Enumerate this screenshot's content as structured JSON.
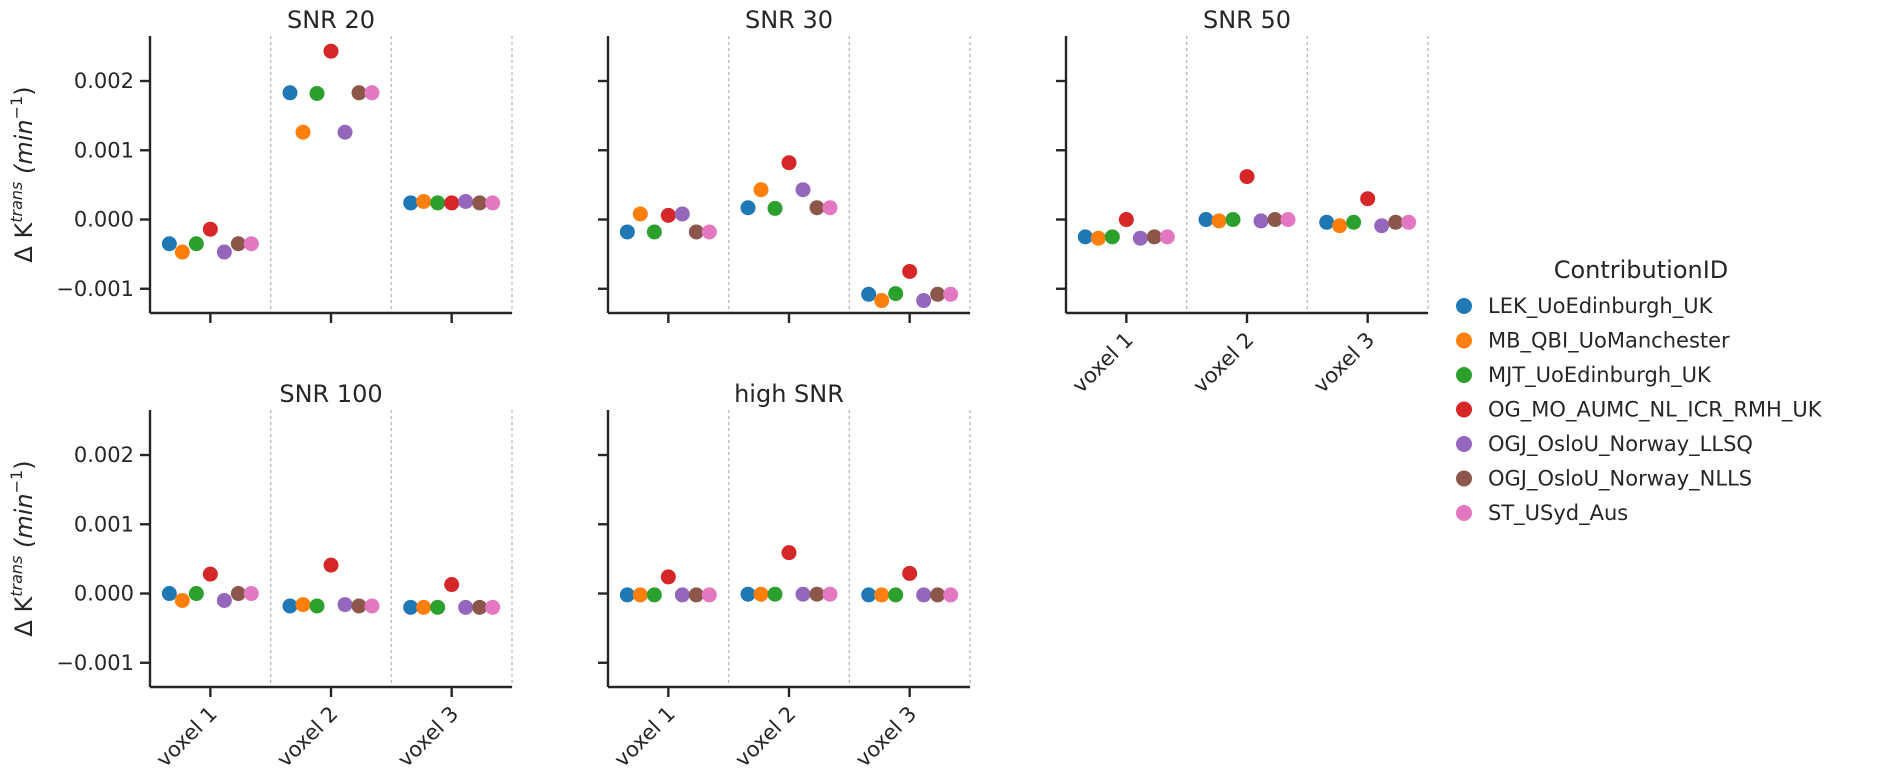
{
  "chart_data": {
    "type": "scatter",
    "ylabel": "Δ K",
    "ylabel_superscript": "trans",
    "ylabel_unit_pre": "(min",
    "ylabel_unit_sup": "−1",
    "ylabel_unit_post": ")",
    "ylim": [
      -0.00135,
      0.00265
    ],
    "yticks": [
      -0.001,
      0.0,
      0.001,
      0.002
    ],
    "ytick_labels": [
      "−0.001",
      "0.000",
      "0.001",
      "0.002"
    ],
    "categories": [
      "voxel 1",
      "voxel 2",
      "voxel 3"
    ],
    "legend": {
      "title": "ContributionID",
      "placement": "right",
      "entries": [
        {
          "name": "LEK_UoEdinburgh_UK",
          "color": "#1f77b4"
        },
        {
          "name": "MB_QBI_UoManchester",
          "color": "#ff7f0e"
        },
        {
          "name": "MJT_UoEdinburgh_UK",
          "color": "#2ca02c"
        },
        {
          "name": "OG_MO_AUMC_NL_ICR_RMH_UK",
          "color": "#d62728"
        },
        {
          "name": "OGJ_OsloU_Norway_LLSQ",
          "color": "#9467bd"
        },
        {
          "name": "OGJ_OsloU_Norway_NLLS",
          "color": "#8c564b"
        },
        {
          "name": "ST_USyd_Aus",
          "color": "#e377c2"
        }
      ]
    },
    "panels": [
      {
        "title": "SNR 20",
        "values": [
          [
            -0.00035,
            -0.00047,
            -0.00035,
            -0.00014,
            -0.00047,
            -0.00035,
            -0.00035
          ],
          [
            0.00183,
            0.00126,
            0.00182,
            0.00243,
            0.00126,
            0.00183,
            0.00183
          ],
          [
            0.00024,
            0.00026,
            0.00024,
            0.00024,
            0.00026,
            0.00024,
            0.00024
          ]
        ]
      },
      {
        "title": "SNR 30",
        "values": [
          [
            -0.00018,
            8e-05,
            -0.00018,
            6e-05,
            8e-05,
            -0.00018,
            -0.00018
          ],
          [
            0.00017,
            0.00043,
            0.00016,
            0.00082,
            0.00043,
            0.00017,
            0.00017
          ],
          [
            -0.00108,
            -0.00117,
            -0.00107,
            -0.00075,
            -0.00117,
            -0.00108,
            -0.00108
          ]
        ]
      },
      {
        "title": "SNR 50",
        "values": [
          [
            -0.00025,
            -0.00027,
            -0.00025,
            0.0,
            -0.00027,
            -0.00025,
            -0.00025
          ],
          [
            0.0,
            -2e-05,
            0.0,
            0.00062,
            -2e-05,
            0.0,
            0.0
          ],
          [
            -4e-05,
            -9e-05,
            -4e-05,
            0.0003,
            -9e-05,
            -4e-05,
            -4e-05
          ]
        ]
      },
      {
        "title": "SNR 100",
        "values": [
          [
            0.0,
            -0.0001,
            0.0,
            0.00028,
            -0.0001,
            0.0,
            0.0
          ],
          [
            -0.00018,
            -0.00016,
            -0.00018,
            0.00041,
            -0.00016,
            -0.00018,
            -0.00018
          ],
          [
            -0.0002,
            -0.0002,
            -0.0002,
            0.00013,
            -0.0002,
            -0.0002,
            -0.0002
          ]
        ]
      },
      {
        "title": "high SNR",
        "values": [
          [
            -2e-05,
            -2e-05,
            -2e-05,
            0.00024,
            -2e-05,
            -2e-05,
            -2e-05
          ],
          [
            -1e-05,
            -1e-05,
            -1e-05,
            0.00059,
            -1e-05,
            -1e-05,
            -1e-05
          ],
          [
            -2e-05,
            -2e-05,
            -2e-05,
            0.00029,
            -2e-05,
            -2e-05,
            -2e-05
          ]
        ]
      }
    ]
  }
}
